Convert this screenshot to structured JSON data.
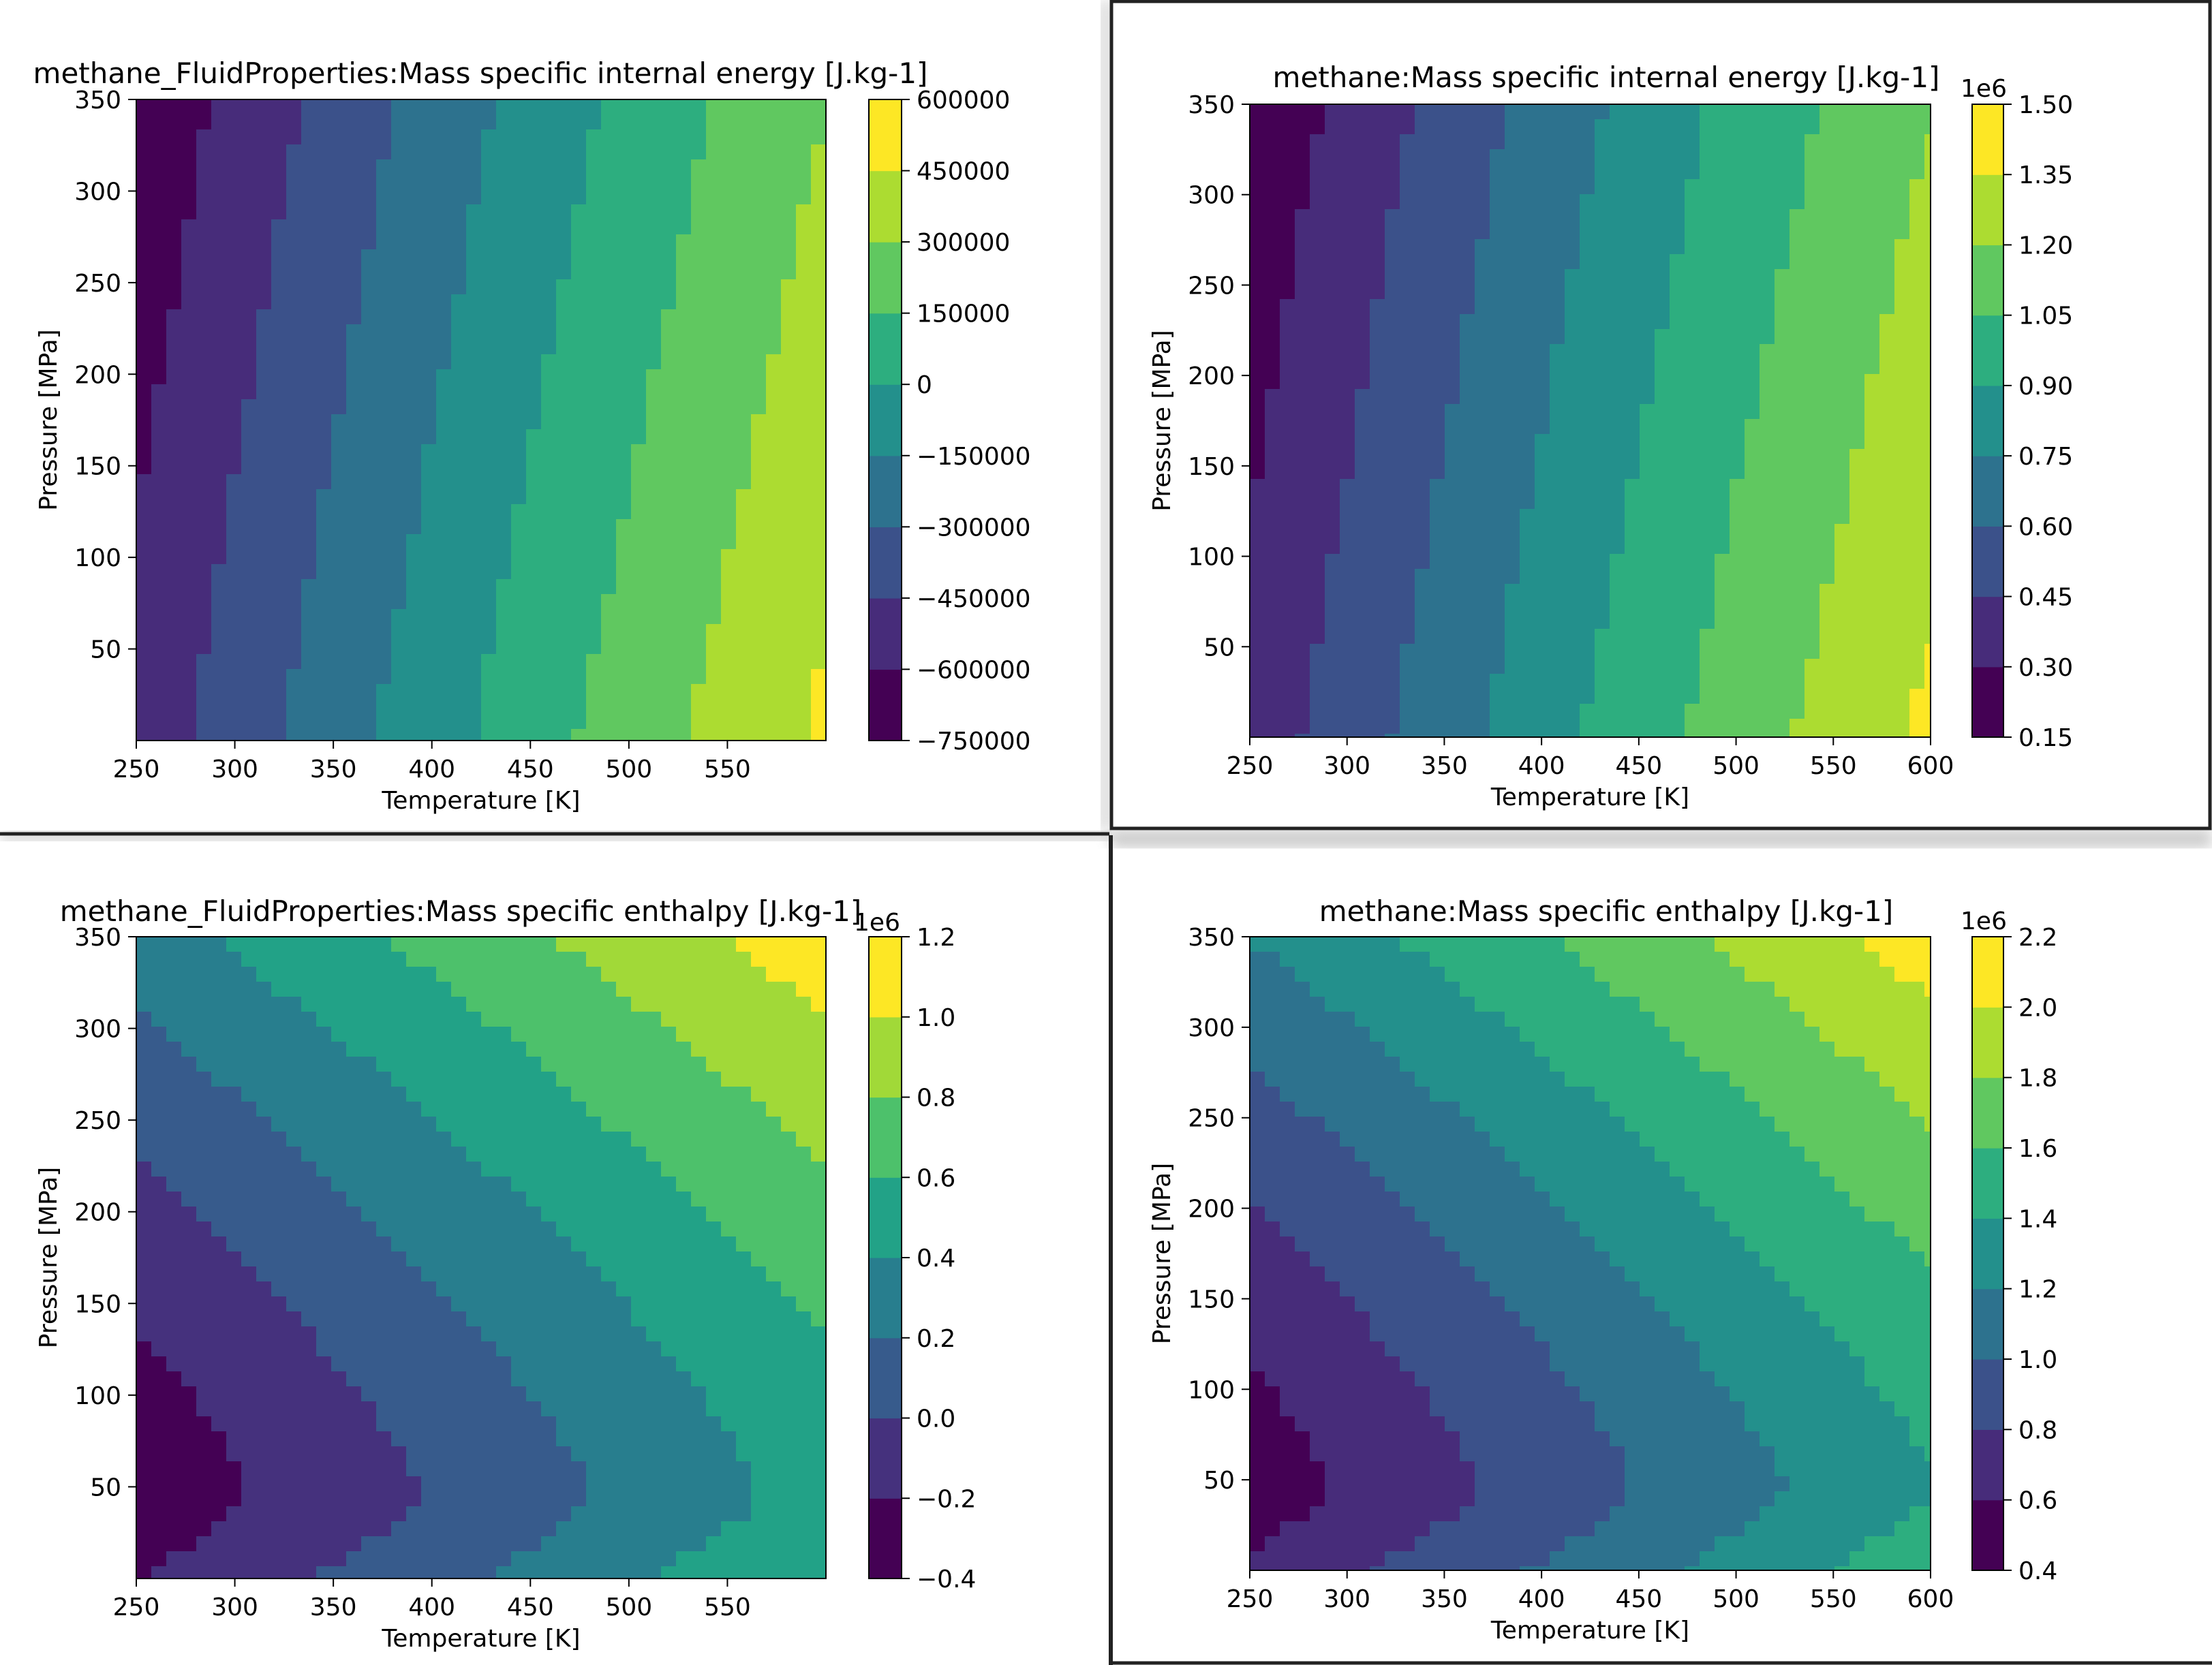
{
  "chart_data": [
    {
      "type": "contour",
      "title": "methane_FluidProperties:Mass specific internal energy [J.kg-1]",
      "xlabel": "Temperature [K]",
      "ylabel": "Pressure [MPa]",
      "x_ticks": [
        "250",
        "300",
        "350",
        "400",
        "450",
        "500",
        "550"
      ],
      "y_ticks": [
        "50",
        "100",
        "150",
        "200",
        "250",
        "300",
        "350"
      ],
      "xlim": [
        250,
        600
      ],
      "ylim": [
        0,
        350
      ],
      "colorbar": {
        "levels": [
          -750000,
          -600000,
          -450000,
          -300000,
          -150000,
          0,
          150000,
          300000,
          450000,
          600000
        ],
        "tick_labels": [
          "600000",
          "450000",
          "300000",
          "150000",
          "0",
          "−150000",
          "−300000",
          "−450000",
          "−600000",
          "−750000"
        ],
        "offset": ""
      },
      "data_range": [
        -720000,
        480000
      ],
      "colormap": "viridis"
    },
    {
      "type": "contour",
      "title": "methane:Mass specific internal energy [J.kg-1]",
      "xlabel": "Temperature [K]",
      "ylabel": "Pressure [MPa]",
      "x_ticks": [
        "250",
        "300",
        "350",
        "400",
        "450",
        "500",
        "550",
        "600"
      ],
      "y_ticks": [
        "50",
        "100",
        "150",
        "200",
        "250",
        "300",
        "350"
      ],
      "xlim": [
        250,
        600
      ],
      "ylim": [
        0,
        350
      ],
      "colorbar": {
        "levels": [
          0.15,
          0.3,
          0.45,
          0.6,
          0.75,
          0.9,
          1.05,
          1.2,
          1.35,
          1.5
        ],
        "tick_labels": [
          "1.50",
          "1.35",
          "1.20",
          "1.05",
          "0.90",
          "0.75",
          "0.60",
          "0.45",
          "0.30",
          "0.15"
        ],
        "offset": "1e6"
      },
      "data_range": [
        0.18,
        1.38
      ],
      "colormap": "viridis"
    },
    {
      "type": "contour",
      "title": "methane_FluidProperties:Mass specific enthalpy [J.kg-1]",
      "xlabel": "Temperature [K]",
      "ylabel": "Pressure [MPa]",
      "x_ticks": [
        "250",
        "300",
        "350",
        "400",
        "450",
        "500",
        "550"
      ],
      "y_ticks": [
        "50",
        "100",
        "150",
        "200",
        "250",
        "300",
        "350"
      ],
      "xlim": [
        250,
        600
      ],
      "ylim": [
        0,
        350
      ],
      "colorbar": {
        "levels": [
          -0.4,
          -0.2,
          0.0,
          0.2,
          0.4,
          0.6,
          0.8,
          1.0,
          1.2
        ],
        "tick_labels": [
          "1.2",
          "1.0",
          "0.8",
          "0.6",
          "0.4",
          "0.2",
          "0.0",
          "−0.2",
          "−0.4"
        ],
        "offset": "1e6"
      },
      "data_range": [
        -0.33,
        1.12
      ],
      "colormap": "viridis"
    },
    {
      "type": "contour",
      "title": "methane:Mass specific enthalpy [J.kg-1]",
      "xlabel": "Temperature [K]",
      "ylabel": "Pressure [MPa]",
      "x_ticks": [
        "250",
        "300",
        "350",
        "400",
        "450",
        "500",
        "550",
        "600"
      ],
      "y_ticks": [
        "50",
        "100",
        "150",
        "200",
        "250",
        "300",
        "350"
      ],
      "xlim": [
        250,
        600
      ],
      "ylim": [
        0,
        350
      ],
      "colorbar": {
        "levels": [
          0.4,
          0.6,
          0.8,
          1.0,
          1.2,
          1.4,
          1.6,
          1.8,
          2.0,
          2.2
        ],
        "tick_labels": [
          "2.2",
          "2.0",
          "1.8",
          "1.6",
          "1.4",
          "1.2",
          "1.0",
          "0.8",
          "0.6",
          "0.4"
        ],
        "offset": "1e6"
      },
      "data_range": [
        0.5,
        2.1
      ],
      "colormap": "viridis"
    }
  ]
}
